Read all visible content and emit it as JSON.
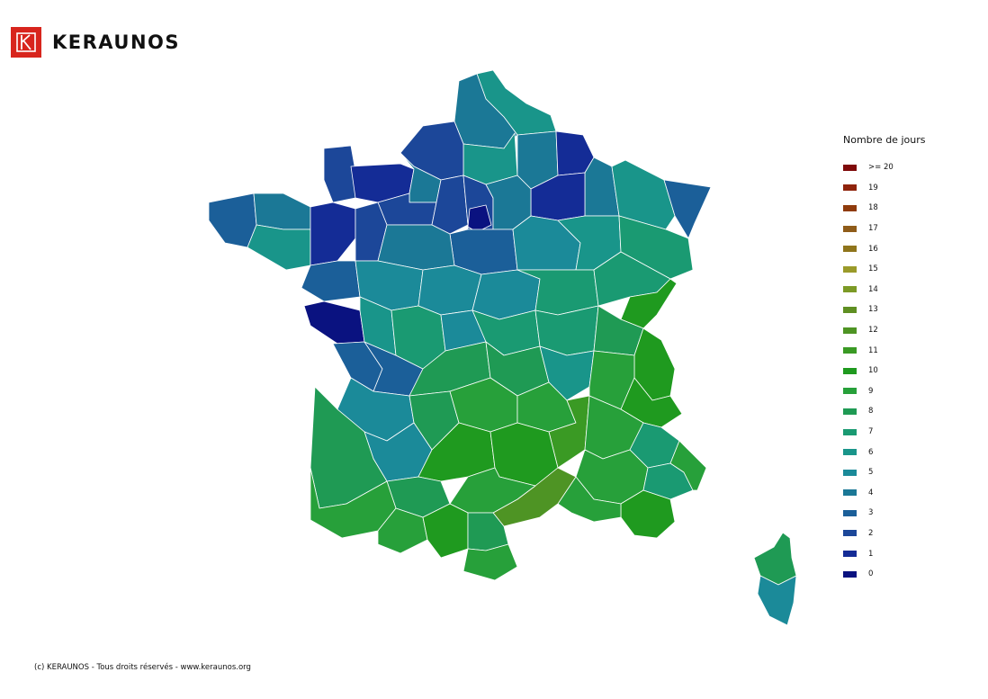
{
  "brand": {
    "name": "KERAUNOS",
    "color": "#d8251d"
  },
  "legend": {
    "title": "Nombre de jours",
    "items": [
      {
        "label": ">= 20",
        "color": "#7f0a0a"
      },
      {
        "label": "19",
        "color": "#8f240c"
      },
      {
        "label": "18",
        "color": "#8f3b0c"
      },
      {
        "label": "17",
        "color": "#8f5c1a"
      },
      {
        "label": "16",
        "color": "#8f751c"
      },
      {
        "label": "15",
        "color": "#9a9a2a"
      },
      {
        "label": "14",
        "color": "#7c9a26"
      },
      {
        "label": "13",
        "color": "#5f8f22"
      },
      {
        "label": "12",
        "color": "#4e9424"
      },
      {
        "label": "11",
        "color": "#3a9a24"
      },
      {
        "label": "10",
        "color": "#1f9a1f"
      },
      {
        "label": "9",
        "color": "#27a03a"
      },
      {
        "label": "8",
        "color": "#1f9a54"
      },
      {
        "label": "7",
        "color": "#1a9a72"
      },
      {
        "label": "6",
        "color": "#19958a"
      },
      {
        "label": "5",
        "color": "#1b8a99"
      },
      {
        "label": "4",
        "color": "#1b7896"
      },
      {
        "label": "3",
        "color": "#1b5f99"
      },
      {
        "label": "2",
        "color": "#1c4799"
      },
      {
        "label": "1",
        "color": "#142c96"
      },
      {
        "label": "0",
        "color": "#0a1280"
      }
    ]
  },
  "footer": {
    "copyright": "(c) KERAUNOS - Tous droits réservés - www.keraunos.org"
  }
}
